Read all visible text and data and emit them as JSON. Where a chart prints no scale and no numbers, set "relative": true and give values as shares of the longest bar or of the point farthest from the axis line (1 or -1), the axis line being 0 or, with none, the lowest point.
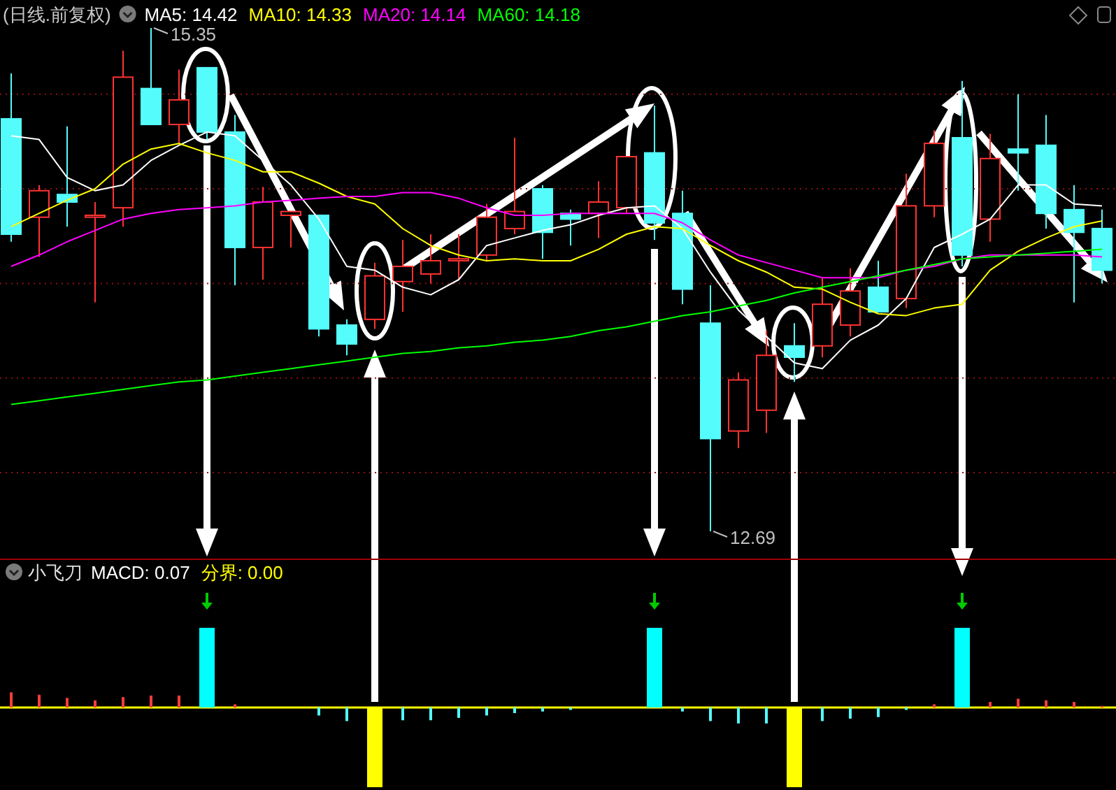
{
  "chart_data": [
    {
      "type": "candlestick",
      "title": "(日线.前复权)",
      "legend": "top left",
      "grid": "y",
      "yticks": [
        {
          "value": 15,
          "label": null
        },
        {
          "value": 14.5,
          "label": null
        },
        {
          "value": 14,
          "label": null
        },
        {
          "value": 13.5,
          "label": null
        },
        {
          "value": 13,
          "label": null
        }
      ],
      "categories": [
        null,
        null,
        null,
        null,
        null,
        null,
        null,
        null,
        null,
        null,
        null,
        null,
        null,
        null,
        null,
        null,
        null,
        null,
        null,
        null,
        null,
        null,
        null,
        null,
        null,
        null,
        null,
        null,
        null,
        null,
        null,
        null,
        null,
        null,
        null,
        null,
        null,
        null,
        null,
        null
      ],
      "ohlc": [
        [
          14.87,
          15.11,
          14.22,
          14.26
        ],
        [
          14.35,
          14.52,
          14.14,
          14.49
        ],
        [
          14.47,
          14.83,
          14.3,
          14.43
        ],
        [
          14.35,
          14.43,
          13.9,
          14.36
        ],
        [
          14.4,
          15.23,
          14.3,
          15.09
        ],
        [
          15.03,
          15.35,
          14.84,
          14.84
        ],
        [
          14.84,
          15.13,
          14.74,
          14.97
        ],
        [
          15.14,
          15.14,
          14.76,
          14.8
        ],
        [
          14.8,
          14.89,
          13.99,
          14.19
        ],
        [
          14.19,
          14.51,
          14.02,
          14.43
        ],
        [
          14.36,
          14.38,
          14.19,
          14.38
        ],
        [
          14.36,
          14.36,
          13.72,
          13.76
        ],
        [
          13.78,
          13.81,
          13.62,
          13.68
        ],
        [
          13.81,
          14.11,
          13.76,
          14.04
        ],
        [
          14.01,
          14.23,
          13.85,
          14.09
        ],
        [
          14.05,
          14.26,
          14.0,
          14.12
        ],
        [
          14.12,
          14.26,
          14.02,
          14.13
        ],
        [
          14.15,
          14.42,
          14.12,
          14.35
        ],
        [
          14.29,
          14.77,
          14.26,
          14.38
        ],
        [
          14.5,
          14.52,
          14.13,
          14.27
        ],
        [
          14.37,
          14.39,
          14.2,
          14.34
        ],
        [
          14.37,
          14.54,
          14.24,
          14.43
        ],
        [
          14.4,
          14.67,
          14.37,
          14.67
        ],
        [
          14.69,
          14.94,
          14.23,
          14.32
        ],
        [
          14.37,
          14.49,
          13.89,
          13.97
        ],
        [
          13.79,
          13.99,
          12.69,
          13.18
        ],
        [
          13.22,
          13.53,
          13.13,
          13.49
        ],
        [
          13.33,
          13.75,
          13.21,
          13.62
        ],
        [
          13.67,
          13.79,
          13.48,
          13.61
        ],
        [
          13.67,
          14.03,
          13.61,
          13.89
        ],
        [
          13.78,
          14.08,
          13.72,
          13.96
        ],
        [
          13.98,
          14.12,
          13.85,
          13.85
        ],
        [
          13.92,
          14.58,
          13.87,
          14.41
        ],
        [
          14.41,
          14.81,
          14.35,
          14.74
        ],
        [
          14.77,
          15.07,
          14.09,
          14.15
        ],
        [
          14.34,
          14.79,
          14.22,
          14.66
        ],
        [
          14.71,
          15.0,
          14.49,
          14.69
        ],
        [
          14.73,
          14.89,
          14.29,
          14.37
        ],
        [
          14.39,
          14.52,
          13.9,
          14.27
        ],
        [
          14.29,
          14.39,
          14.0,
          14.07
        ]
      ],
      "series": [
        {
          "type": "line",
          "name": "MA5: 14.42",
          "color": "#ffffff",
          "values": [
            14.78,
            14.76,
            14.56,
            14.49,
            14.52,
            14.65,
            14.73,
            14.8,
            14.78,
            14.65,
            14.52,
            14.34,
            14.09,
            14.07,
            13.98,
            13.94,
            14.02,
            14.2,
            14.24,
            14.28,
            14.31,
            14.36,
            14.4,
            14.41,
            14.29,
            14.06,
            13.86,
            13.72,
            13.58,
            13.55,
            13.7,
            13.78,
            13.92,
            14.19,
            14.26,
            14.34,
            14.52,
            14.52,
            14.42,
            14.41
          ]
        },
        {
          "type": "line",
          "name": "MA10: 14.33",
          "color": "#ffff00",
          "values": [
            14.3,
            14.37,
            14.44,
            14.5,
            14.63,
            14.71,
            14.74,
            14.69,
            14.65,
            14.59,
            14.59,
            14.53,
            14.46,
            14.42,
            14.29,
            14.2,
            14.15,
            14.12,
            14.13,
            14.12,
            14.12,
            14.18,
            14.26,
            14.3,
            14.29,
            14.2,
            14.12,
            14.06,
            13.98,
            13.97,
            13.9,
            13.84,
            13.83,
            13.87,
            13.89,
            14.07,
            14.17,
            14.24,
            14.3,
            14.33
          ]
        },
        {
          "type": "line",
          "name": "MA20: 14.14",
          "color": "#ff00ff",
          "values": [
            14.09,
            14.15,
            14.22,
            14.28,
            14.34,
            14.37,
            14.39,
            14.4,
            14.41,
            14.43,
            14.44,
            14.45,
            14.46,
            14.46,
            14.48,
            14.48,
            14.45,
            14.4,
            14.36,
            14.36,
            14.37,
            14.37,
            14.37,
            14.37,
            14.32,
            14.23,
            14.15,
            14.11,
            14.07,
            14.03,
            14.03,
            14.03,
            14.07,
            14.09,
            14.13,
            14.15,
            14.15,
            14.15,
            14.15,
            14.14
          ]
        },
        {
          "type": "line",
          "name": "MA60: 14.18",
          "color": "#00ff00",
          "values": [
            13.36,
            13.38,
            13.4,
            13.42,
            13.44,
            13.46,
            13.48,
            13.49,
            13.51,
            13.53,
            13.55,
            13.57,
            13.59,
            13.61,
            13.63,
            13.64,
            13.66,
            13.67,
            13.69,
            13.7,
            13.72,
            13.75,
            13.77,
            13.8,
            13.83,
            13.85,
            13.88,
            13.91,
            13.95,
            13.98,
            14.01,
            14.04,
            14.07,
            14.1,
            14.13,
            14.14,
            14.15,
            14.16,
            14.17,
            14.18
          ]
        }
      ],
      "annotations": [
        "15.35",
        "12.69"
      ]
    },
    {
      "type": "bar",
      "title": "小飞刀",
      "relative": true,
      "categories": [
        null,
        null,
        null,
        null,
        null,
        null,
        null,
        null,
        null,
        null,
        null,
        null,
        null,
        null,
        null,
        null,
        null,
        null,
        null,
        null,
        null,
        null,
        null,
        null,
        null,
        null,
        null,
        null,
        null,
        null,
        null,
        null,
        null,
        null,
        null,
        null,
        null,
        null,
        null,
        null
      ],
      "values": [
        0.19,
        0.16,
        0.12,
        0.09,
        0.13,
        0.15,
        0.15,
        1,
        0.04,
        null,
        null,
        -0.1,
        -0.17,
        -1,
        -0.16,
        -0.16,
        -0.13,
        -0.1,
        -0.07,
        -0.05,
        -0.03,
        null,
        null,
        1,
        -0.05,
        -0.17,
        -0.2,
        -0.2,
        -1,
        -0.17,
        -0.14,
        -0.12,
        -0.03,
        0.04,
        1,
        0.07,
        0.11,
        0.09,
        0.07,
        0.02
      ],
      "colors": [
        "#ff3c3c",
        "#ff3c3c",
        "#ff3c3c",
        "#ff3c3c",
        "#ff3c3c",
        "#ff3c3c",
        "#ff3c3c",
        "#00ffff",
        "#ff3c3c",
        null,
        null,
        "#54fcfc",
        "#54fcfc",
        "#ffff00",
        "#54fcfc",
        "#54fcfc",
        "#54fcfc",
        "#54fcfc",
        "#54fcfc",
        "#54fcfc",
        "#54fcfc",
        null,
        null,
        "#00ffff",
        "#54fcfc",
        "#54fcfc",
        "#54fcfc",
        "#54fcfc",
        "#ffff00",
        "#54fcfc",
        "#54fcfc",
        "#54fcfc",
        "#54fcfc",
        "#ff3c3c",
        "#00ffff",
        "#ff3c3c",
        "#ff3c3c",
        "#ff3c3c",
        "#ff3c3c",
        "#ff3c3c"
      ],
      "annotations": [
        "MACD: 0.07"
      ],
      "ref_lines": [
        {
          "axis": "y",
          "value": 0,
          "label": "分界: 0.00",
          "color": "#ffff00"
        }
      ]
    }
  ]
}
